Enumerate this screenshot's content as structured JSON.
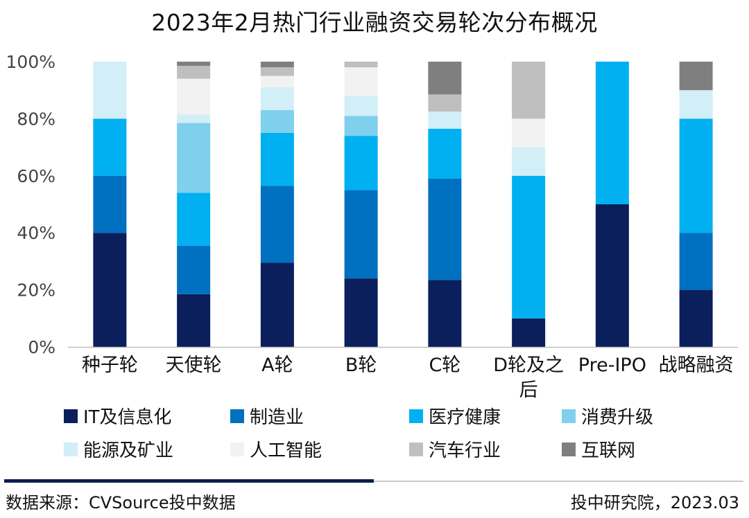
{
  "chart_data": {
    "type": "bar",
    "stacked": true,
    "title": "2023年2月热门行业融资交易轮次分布概况",
    "categories": [
      "种子轮",
      "天使轮",
      "A轮",
      "B轮",
      "C轮",
      "D轮及之后",
      "Pre-IPO",
      "战略融资"
    ],
    "category_lines": [
      [
        "种子轮"
      ],
      [
        "天使轮"
      ],
      [
        "A轮"
      ],
      [
        "B轮"
      ],
      [
        "C轮"
      ],
      [
        "D轮及之",
        "后"
      ],
      [
        "Pre-IPO"
      ],
      [
        "战略融资"
      ]
    ],
    "ylim": [
      0,
      100
    ],
    "yticks": [
      "0%",
      "20%",
      "40%",
      "60%",
      "80%",
      "100%"
    ],
    "grid": false,
    "legend_position": "bottom",
    "series": [
      {
        "name": "IT及信息化",
        "color": "#0a1f5c",
        "values": [
          40,
          18.5,
          29.5,
          24,
          23.5,
          10,
          50,
          20
        ]
      },
      {
        "name": "制造业",
        "color": "#0070c0",
        "values": [
          20,
          17,
          27,
          31,
          35.5,
          0,
          0,
          20
        ]
      },
      {
        "name": "医疗健康",
        "color": "#00b0f0",
        "values": [
          20,
          18.5,
          18.5,
          19,
          17.5,
          50,
          50,
          40
        ]
      },
      {
        "name": "消费升级",
        "color": "#7fd0ec",
        "values": [
          0,
          24.5,
          8,
          7,
          0,
          0,
          0,
          0
        ]
      },
      {
        "name": "能源及矿业",
        "color": "#d2eef7",
        "values": [
          20,
          3,
          8,
          7,
          6,
          10,
          0,
          10
        ]
      },
      {
        "name": "人工智能",
        "color": "#f2f2f2",
        "values": [
          0,
          12.5,
          4,
          10,
          0,
          10,
          0,
          0
        ]
      },
      {
        "name": "汽车行业",
        "color": "#bfbfbf",
        "values": [
          0,
          4.5,
          3,
          2,
          6,
          20,
          0,
          0
        ]
      },
      {
        "name": "互联网",
        "color": "#7f7f7f",
        "values": [
          0,
          1.5,
          2,
          0,
          11.5,
          0,
          0,
          10
        ]
      }
    ]
  },
  "footer": {
    "source": "数据来源：CVSource投中数据",
    "credit": "投中研究院，2023.03"
  }
}
